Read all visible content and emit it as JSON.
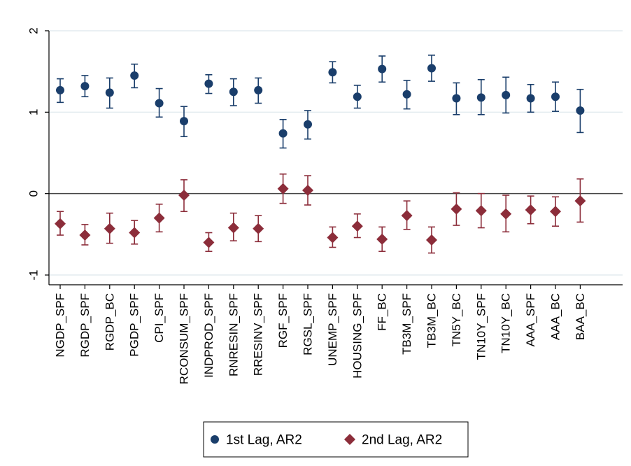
{
  "chart_data": {
    "type": "scatter",
    "title": "",
    "xlabel": "",
    "ylabel": "",
    "ylim": [
      -1.12,
      2.12
    ],
    "yticks": [
      -1,
      0,
      1,
      2
    ],
    "ytick_labels": [
      "-1",
      "0",
      "1",
      "2"
    ],
    "grid": true,
    "reference_line_y": 0,
    "legend_position": "bottom-center",
    "categories": [
      "NGDP_SPF",
      "RGDP_SPF",
      "RGDP_BC",
      "PGDP_SPF",
      "CPI_SPF",
      "RCONSUM_SPF",
      "INDPROD_SPF",
      "RNRESIN_SPF",
      "RRESINV_SPF",
      "RGF_SPF",
      "RGSL_SPF",
      "UNEMP_SPF",
      "HOUSING_SPF",
      "FF_BC",
      "TB3M_SPF",
      "TB3M_BC",
      "TN5Y_BC",
      "TN10Y_SPF",
      "TN10Y_BC",
      "AAA_SPF",
      "AAA_BC",
      "BAA_BC"
    ],
    "series": [
      {
        "name": "1st Lag, AR2",
        "marker": "circle",
        "color": "#1a3e6b",
        "values": [
          1.27,
          1.32,
          1.24,
          1.45,
          1.11,
          0.89,
          1.35,
          1.25,
          1.27,
          0.74,
          0.85,
          1.49,
          1.19,
          1.53,
          1.22,
          1.54,
          1.17,
          1.18,
          1.21,
          1.17,
          1.19,
          1.02
        ],
        "ci_low": [
          1.12,
          1.19,
          1.05,
          1.3,
          0.94,
          0.7,
          1.23,
          1.08,
          1.11,
          0.56,
          0.67,
          1.36,
          1.05,
          1.37,
          1.04,
          1.38,
          0.97,
          0.97,
          0.99,
          1.0,
          1.01,
          0.75
        ],
        "ci_high": [
          1.41,
          1.45,
          1.42,
          1.59,
          1.29,
          1.07,
          1.46,
          1.41,
          1.42,
          0.91,
          1.02,
          1.62,
          1.33,
          1.69,
          1.39,
          1.7,
          1.36,
          1.4,
          1.43,
          1.34,
          1.37,
          1.28
        ]
      },
      {
        "name": "2nd Lag, AR2",
        "marker": "diamond",
        "color": "#8c2d3a",
        "values": [
          -0.37,
          -0.51,
          -0.43,
          -0.48,
          -0.3,
          -0.02,
          -0.6,
          -0.42,
          -0.43,
          0.06,
          0.04,
          -0.54,
          -0.4,
          -0.56,
          -0.27,
          -0.57,
          -0.19,
          -0.21,
          -0.25,
          -0.2,
          -0.22,
          -0.09
        ],
        "ci_low": [
          -0.51,
          -0.63,
          -0.61,
          -0.62,
          -0.47,
          -0.22,
          -0.71,
          -0.58,
          -0.59,
          -0.12,
          -0.14,
          -0.66,
          -0.54,
          -0.71,
          -0.44,
          -0.73,
          -0.39,
          -0.42,
          -0.47,
          -0.37,
          -0.4,
          -0.35
        ],
        "ci_high": [
          -0.22,
          -0.38,
          -0.24,
          -0.33,
          -0.13,
          0.17,
          -0.48,
          -0.24,
          -0.27,
          0.24,
          0.22,
          -0.41,
          -0.25,
          -0.41,
          -0.09,
          -0.41,
          0.01,
          0.0,
          -0.02,
          -0.03,
          -0.04,
          0.18
        ]
      }
    ]
  }
}
